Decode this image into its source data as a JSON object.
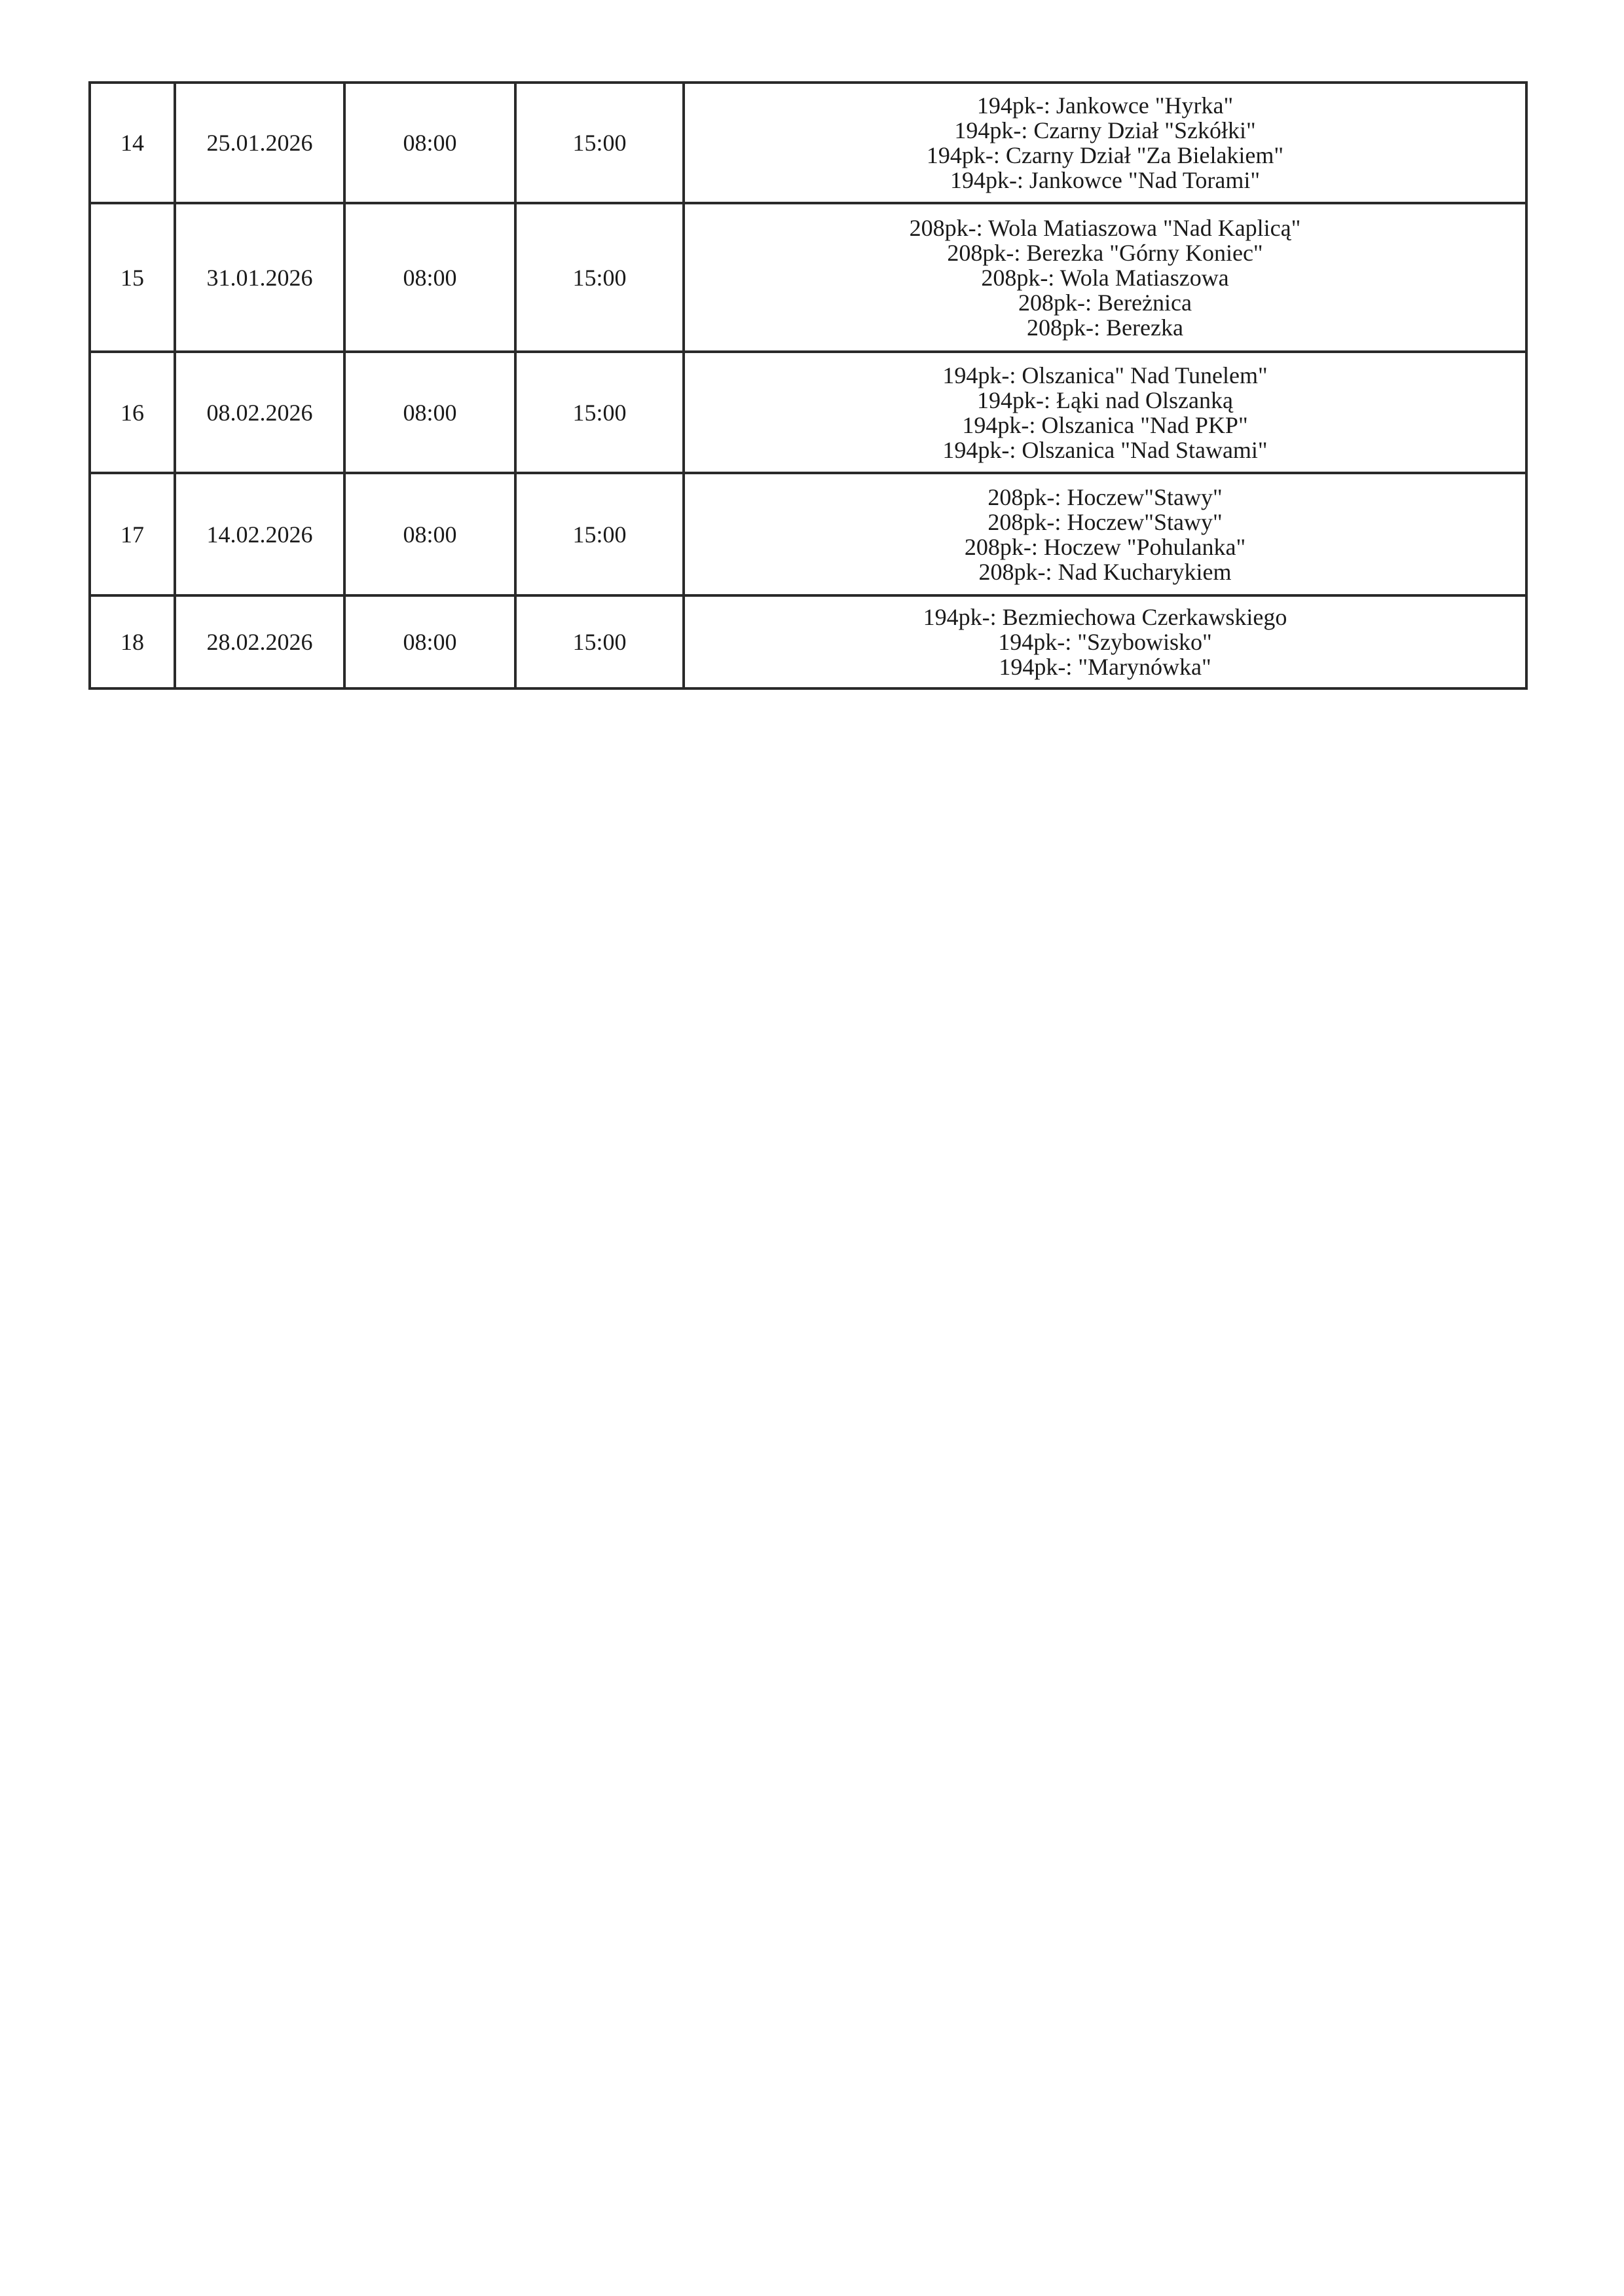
{
  "rows": [
    {
      "no": "14",
      "date": "25.01.2026",
      "start": "08:00",
      "end": "15:00",
      "places": [
        "194pk-: Jankowce \"Hyrka\"",
        "194pk-: Czarny Dział \"Szkółki\"",
        "194pk-: Czarny Dział \"Za Bielakiem\"",
        "194pk-: Jankowce \"Nad Torami\""
      ]
    },
    {
      "no": "15",
      "date": "31.01.2026",
      "start": "08:00",
      "end": "15:00",
      "places": [
        "208pk-: Wola Matiaszowa \"Nad Kaplicą\"",
        "208pk-: Berezka \"Górny Koniec\"",
        "208pk-: Wola Matiaszowa",
        "208pk-: Bereżnica",
        "208pk-: Berezka"
      ]
    },
    {
      "no": "16",
      "date": "08.02.2026",
      "start": "08:00",
      "end": "15:00",
      "places": [
        "194pk-: Olszanica\" Nad Tunelem\"",
        "194pk-: Łąki nad Olszanką",
        "194pk-: Olszanica \"Nad PKP\"",
        "194pk-: Olszanica \"Nad Stawami\""
      ]
    },
    {
      "no": "17",
      "date": "14.02.2026",
      "start": "08:00",
      "end": "15:00",
      "places": [
        "208pk-: Hoczew\"Stawy\"",
        "208pk-: Hoczew\"Stawy\"",
        "208pk-: Hoczew \"Pohulanka\"",
        "208pk-: Nad Kucharykiem"
      ]
    },
    {
      "no": "18",
      "date": "28.02.2026",
      "start": "08:00",
      "end": "15:00",
      "places": [
        "194pk-: Bezmiechowa Czerkawskiego",
        "194pk-: \"Szybowisko\"",
        "194pk-: \"Marynówka\""
      ]
    }
  ]
}
